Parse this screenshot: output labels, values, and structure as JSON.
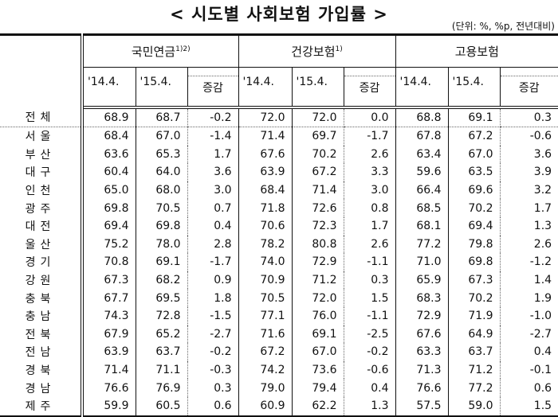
{
  "title": "< 시도별 사회보험 가입률 >",
  "unit": "(단위: %, %p, 전년대비)",
  "groups": [
    {
      "label": "국민연금",
      "note": "1)2)"
    },
    {
      "label": "건강보험",
      "note": "1)"
    },
    {
      "label": "고용보험",
      "note": ""
    }
  ],
  "subheaders": [
    "'14.4.",
    "'15.4.",
    "증감"
  ],
  "rows": [
    {
      "region": "전체",
      "values": [
        "68.9",
        "68.7",
        "-0.2",
        "72.0",
        "72.0",
        "0.0",
        "68.8",
        "69.1",
        "0.3"
      ]
    },
    {
      "region": "서울",
      "values": [
        "68.4",
        "67.0",
        "-1.4",
        "71.4",
        "69.7",
        "-1.7",
        "67.8",
        "67.2",
        "-0.6"
      ]
    },
    {
      "region": "부산",
      "values": [
        "63.6",
        "65.3",
        "1.7",
        "67.6",
        "70.2",
        "2.6",
        "63.4",
        "67.0",
        "3.6"
      ]
    },
    {
      "region": "대구",
      "values": [
        "60.4",
        "64.0",
        "3.6",
        "63.9",
        "67.2",
        "3.3",
        "59.6",
        "63.5",
        "3.9"
      ]
    },
    {
      "region": "인천",
      "values": [
        "65.0",
        "68.0",
        "3.0",
        "68.4",
        "71.4",
        "3.0",
        "66.4",
        "69.6",
        "3.2"
      ]
    },
    {
      "region": "광주",
      "values": [
        "69.8",
        "70.5",
        "0.7",
        "71.8",
        "72.6",
        "0.8",
        "68.5",
        "70.2",
        "1.7"
      ]
    },
    {
      "region": "대전",
      "values": [
        "69.4",
        "69.8",
        "0.4",
        "70.6",
        "72.3",
        "1.7",
        "68.1",
        "69.4",
        "1.3"
      ]
    },
    {
      "region": "울산",
      "values": [
        "75.2",
        "78.0",
        "2.8",
        "78.2",
        "80.8",
        "2.6",
        "77.2",
        "79.8",
        "2.6"
      ]
    },
    {
      "region": "경기",
      "values": [
        "70.8",
        "69.1",
        "-1.7",
        "74.0",
        "72.9",
        "-1.1",
        "71.0",
        "69.8",
        "-1.2"
      ]
    },
    {
      "region": "강원",
      "values": [
        "67.3",
        "68.2",
        "0.9",
        "70.9",
        "71.2",
        "0.3",
        "65.9",
        "67.3",
        "1.4"
      ]
    },
    {
      "region": "충북",
      "values": [
        "67.7",
        "69.5",
        "1.8",
        "70.5",
        "72.0",
        "1.5",
        "68.3",
        "70.2",
        "1.9"
      ]
    },
    {
      "region": "충남",
      "values": [
        "74.3",
        "72.8",
        "-1.5",
        "77.1",
        "76.0",
        "-1.1",
        "72.9",
        "71.9",
        "-1.0"
      ]
    },
    {
      "region": "전북",
      "values": [
        "67.9",
        "65.2",
        "-2.7",
        "71.6",
        "69.1",
        "-2.5",
        "67.6",
        "64.9",
        "-2.7"
      ]
    },
    {
      "region": "전남",
      "values": [
        "63.9",
        "63.7",
        "-0.2",
        "67.2",
        "67.0",
        "-0.2",
        "63.3",
        "63.7",
        "0.4"
      ]
    },
    {
      "region": "경북",
      "values": [
        "71.4",
        "71.1",
        "-0.3",
        "74.2",
        "73.6",
        "-0.6",
        "71.3",
        "71.2",
        "-0.1"
      ]
    },
    {
      "region": "경남",
      "values": [
        "76.6",
        "76.9",
        "0.3",
        "79.0",
        "79.4",
        "0.4",
        "76.6",
        "77.2",
        "0.6"
      ]
    },
    {
      "region": "제주",
      "values": [
        "59.9",
        "60.5",
        "0.6",
        "60.9",
        "62.2",
        "1.3",
        "57.5",
        "59.0",
        "1.5"
      ]
    }
  ]
}
